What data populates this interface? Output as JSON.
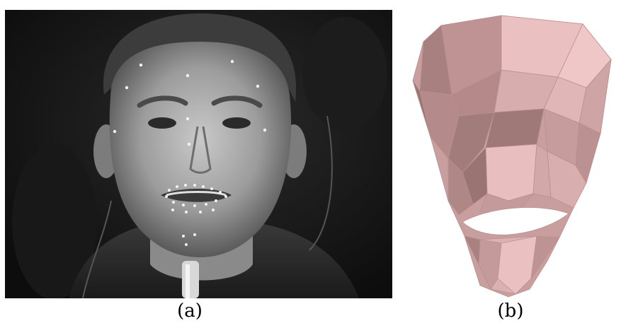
{
  "figure": {
    "panels": [
      {
        "id": "a",
        "caption": "(a)",
        "content": "grayscale-photo-face-with-markers"
      },
      {
        "id": "b",
        "caption": "(b)",
        "content": "3d-face-mesh",
        "mesh_color": "#e7b9b9"
      }
    ]
  }
}
